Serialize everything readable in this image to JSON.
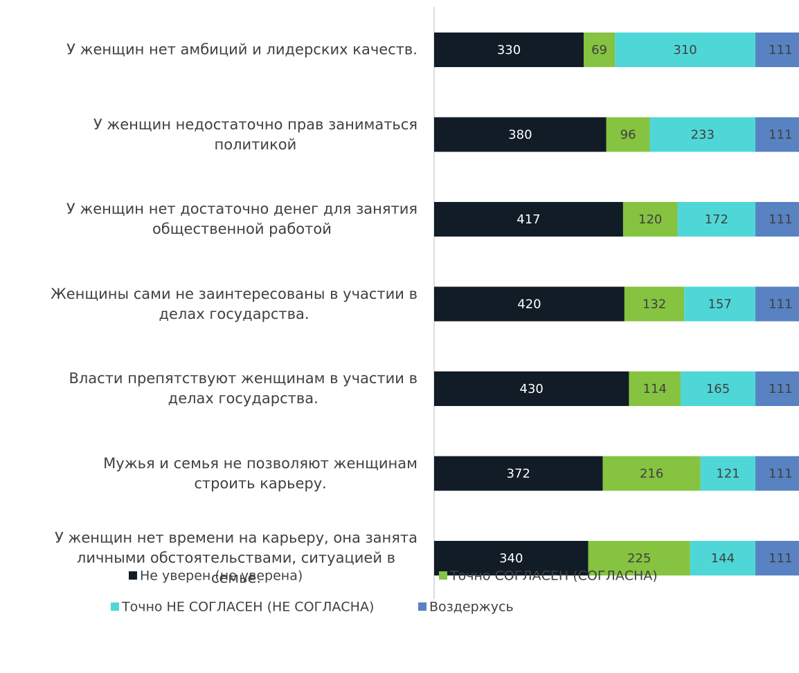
{
  "chart_data": {
    "type": "stacked_bar_horizontal",
    "categories": [
      "У женщин нет амбиций и лидерских качеств.",
      "У женщин недостаточно прав заниматься\nполитикой",
      "У женщин нет достаточно денег для занятия\nобщественной работой",
      "Женщины сами не заинтересованы в участии в\nделах государства.",
      "Власти препятствуют женщинам в участии в\nделах государства.",
      "Мужья и семья не позволяют женщинам\nстроить карьеру.",
      "У женщин нет времени на карьеру, она занята\nличными обстоятельствами, ситуацией в\nсемье."
    ],
    "series": [
      {
        "name": "Не уверен (не уверена)",
        "color": "#111c27",
        "values": [
          330,
          380,
          417,
          420,
          430,
          372,
          340
        ]
      },
      {
        "name": "Точно СОГЛАСЕН (СОГЛАСНА)",
        "color": "#85c341",
        "values": [
          69,
          96,
          120,
          132,
          114,
          216,
          225
        ]
      },
      {
        "name": "Точно НЕ СОГЛАСЕН (НЕ СОГЛАСНА)",
        "color": "#4fd7d8",
        "values": [
          310,
          233,
          172,
          157,
          165,
          121,
          144
        ]
      },
      {
        "name": "Воздержусь",
        "color": "#5882c1",
        "values": [
          111,
          111,
          111,
          111,
          111,
          111,
          111
        ]
      }
    ]
  }
}
